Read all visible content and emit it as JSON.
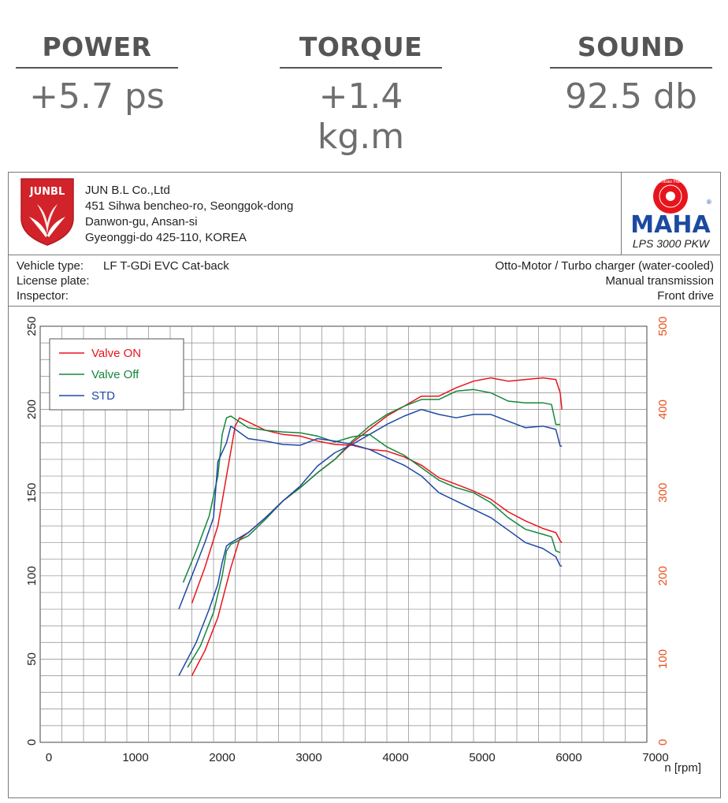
{
  "stats": [
    {
      "label": "POWER",
      "value": "+5.7 ps"
    },
    {
      "label": "TORQUE",
      "value": "+1.4 kg.m"
    },
    {
      "label": "SOUND",
      "value": "92.5 db"
    }
  ],
  "header": {
    "logo_text": "JUNBL",
    "company_lines": [
      "JUN B.L Co.,Ltd",
      "451 Sihwa bencheo-ro, Seonggok-dong",
      "Danwon-gu, Ansan-si",
      "Gyeonggi-do 425-110, KOREA"
    ],
    "maha_brand": "MAHA",
    "maha_ring_text": "Maschinenbau Haldenwang",
    "maha_registered": "®",
    "maha_model": "LPS 3000 PKW"
  },
  "vehicle": {
    "type_label": "Vehicle type:",
    "type_value": "LF T-GDi EVC Cat-back",
    "plate_label": "License plate:",
    "inspector_label": "Inspector:",
    "engine": "Otto-Motor / Turbo charger (water-cooled)",
    "transmission": "Manual transmission",
    "drive": "Front drive"
  },
  "colors": {
    "valve_on": "#e8141c",
    "valve_off": "#13873d",
    "std": "#1f48a6",
    "right_axis": "#e8501c",
    "maha_blue": "#1c4aa0",
    "logo_red": "#d2232a"
  },
  "chart_data": {
    "type": "line",
    "xlabel": "n [rpm]",
    "x_ticks": [
      0,
      1000,
      2000,
      3000,
      4000,
      5000,
      6000,
      7000
    ],
    "xlim": [
      0,
      7000
    ],
    "ylim_left": [
      0,
      250
    ],
    "y_ticks_left": [
      0,
      50,
      100,
      150,
      200,
      250
    ],
    "ylim_right": [
      0,
      500
    ],
    "y_ticks_right": [
      0,
      100,
      200,
      300,
      400,
      500
    ],
    "grid": true,
    "legend_position": "top-left",
    "series": [
      {
        "name": "Valve ON",
        "color_key": "valve_on",
        "kind": "power",
        "x": [
          1750,
          1900,
          2050,
          2200,
          2300,
          2400,
          2600,
          2800,
          3000,
          3200,
          3400,
          3600,
          3800,
          4000,
          4200,
          4400,
          4600,
          4800,
          5000,
          5200,
          5400,
          5600,
          5800,
          5950,
          6000,
          6020
        ],
        "y": [
          40,
          55,
          75,
          105,
          122,
          126,
          135,
          145,
          153,
          162,
          170,
          180,
          188,
          196,
          202,
          208,
          208,
          213,
          217,
          219,
          217,
          218,
          219,
          218,
          210,
          200
        ]
      },
      {
        "name": "Valve Off",
        "color_key": "valve_off",
        "kind": "power",
        "x": [
          1700,
          1850,
          2000,
          2100,
          2150,
          2200,
          2400,
          2600,
          2800,
          3000,
          3200,
          3400,
          3600,
          3800,
          4000,
          4200,
          4400,
          4600,
          4800,
          5000,
          5200,
          5400,
          5600,
          5800,
          5900,
          5950,
          6000
        ],
        "y": [
          45,
          58,
          78,
          100,
          115,
          119,
          124,
          134,
          145,
          153,
          162,
          170,
          181,
          190,
          197,
          202,
          206,
          206,
          211,
          212,
          210,
          205,
          204,
          204,
          203,
          191,
          191
        ]
      },
      {
        "name": "STD",
        "color_key": "std",
        "kind": "power",
        "x": [
          1600,
          1800,
          1950,
          2050,
          2100,
          2150,
          2200,
          2400,
          2600,
          2800,
          3000,
          3200,
          3400,
          3600,
          3800,
          4000,
          4200,
          4400,
          4600,
          4800,
          5000,
          5200,
          5400,
          5600,
          5800,
          5950,
          6000,
          6020
        ],
        "y": [
          40,
          60,
          80,
          95,
          108,
          118,
          120,
          126,
          135,
          145,
          154,
          166,
          174,
          179,
          185,
          191,
          196,
          200,
          197,
          195,
          197,
          197,
          193,
          189,
          190,
          188,
          178,
          178
        ]
      },
      {
        "name": "Valve ON",
        "color_key": "valve_on",
        "kind": "torque",
        "x": [
          1750,
          1900,
          2050,
          2150,
          2250,
          2300,
          2400,
          2600,
          2800,
          3000,
          3200,
          3400,
          3600,
          3800,
          4000,
          4200,
          4400,
          4600,
          4800,
          5000,
          5200,
          5400,
          5600,
          5800,
          5950,
          6000,
          6020
        ],
        "y": [
          167,
          210,
          260,
          320,
          380,
          390,
          385,
          375,
          370,
          368,
          362,
          358,
          357,
          352,
          350,
          343,
          333,
          318,
          310,
          302,
          292,
          277,
          266,
          257,
          252,
          242,
          240
        ]
      },
      {
        "name": "Valve Off",
        "color_key": "valve_off",
        "kind": "torque",
        "x": [
          1650,
          1800,
          1950,
          2050,
          2100,
          2150,
          2200,
          2400,
          2600,
          2800,
          3000,
          3200,
          3400,
          3600,
          3800,
          4000,
          4200,
          4400,
          4600,
          4800,
          5000,
          5200,
          5400,
          5600,
          5800,
          5900,
          5950,
          6000
        ],
        "y": [
          192,
          230,
          272,
          320,
          370,
          390,
          392,
          378,
          375,
          373,
          372,
          368,
          361,
          367,
          370,
          355,
          345,
          330,
          315,
          306,
          300,
          288,
          270,
          256,
          250,
          247,
          230,
          228
        ]
      },
      {
        "name": "STD",
        "color_key": "std",
        "kind": "torque",
        "x": [
          1600,
          1750,
          1900,
          2000,
          2050,
          2150,
          2200,
          2400,
          2600,
          2800,
          3000,
          3200,
          3400,
          3600,
          3800,
          4000,
          4200,
          4400,
          4600,
          4800,
          5000,
          5200,
          5400,
          5600,
          5800,
          5950,
          6000,
          6020
        ],
        "y": [
          160,
          200,
          240,
          270,
          337,
          360,
          380,
          365,
          362,
          358,
          357,
          365,
          362,
          358,
          352,
          342,
          333,
          320,
          300,
          290,
          280,
          270,
          255,
          240,
          233,
          223,
          212,
          212
        ]
      }
    ]
  }
}
